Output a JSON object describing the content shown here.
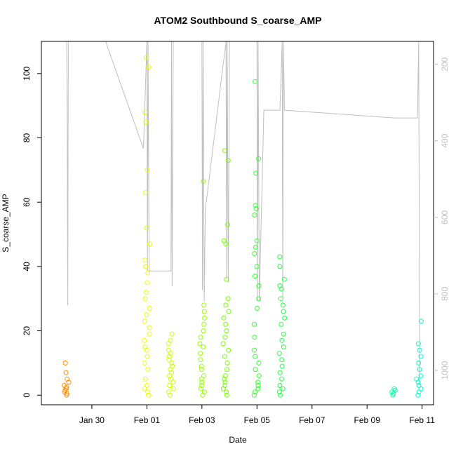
{
  "chart_data": {
    "type": "scatter",
    "title": "ATOM2 Southbound S_coarse_AMP",
    "xlabel": "Date",
    "ylabel": "S_coarse_AMP",
    "x_unit": "date",
    "xlim": [
      "2025-01-28T04:00",
      "2025-02-11T10:00"
    ],
    "ylim": [
      -3,
      110
    ],
    "y_ticks": [
      0,
      20,
      40,
      60,
      80,
      100
    ],
    "x_tick_labels": [
      "Jan 30",
      "Feb 01",
      "Feb 03",
      "Feb 05",
      "Feb 07",
      "Feb 09",
      "Feb 11"
    ],
    "x_tick_dates": [
      "2025-01-30",
      "2025-02-01",
      "2025-02-03",
      "2025-02-05",
      "2025-02-07",
      "2025-02-09",
      "2025-02-11"
    ],
    "right_axis": {
      "ticks": [
        200,
        400,
        600,
        800,
        1000
      ],
      "lim": [
        1090,
        140
      ],
      "reversed": true,
      "color": "#bfbfbf"
    },
    "grid": false,
    "legend": "none",
    "marker": "open-circle",
    "clusters": [
      {
        "date": "2025-01-29T02:00",
        "color": "#ff8c00",
        "values": [
          0,
          0.5,
          1,
          1.5,
          2,
          2.5,
          3,
          4,
          5,
          7,
          10
        ]
      },
      {
        "date": "2025-02-01T00:00",
        "color": "#e8ff00",
        "values": [
          0,
          1,
          2,
          3,
          5,
          8,
          10,
          12,
          14,
          15,
          17,
          19,
          21,
          23,
          25,
          27,
          30,
          32,
          35,
          38,
          40,
          42,
          47,
          52,
          63,
          70,
          85,
          88,
          102,
          105
        ]
      },
      {
        "date": "2025-02-01T21:00",
        "color": "#ccff00",
        "values": [
          0,
          1,
          2,
          3,
          4,
          5,
          6,
          7,
          8,
          9,
          10,
          11,
          12,
          13,
          14,
          16,
          17,
          19
        ]
      },
      {
        "date": "2025-02-03T00:00",
        "color": "#99ff00",
        "values": [
          0,
          1,
          2,
          3,
          4,
          5,
          6,
          8,
          9,
          11,
          13,
          15,
          16,
          18,
          20,
          22,
          24,
          26,
          28,
          66.5
        ]
      },
      {
        "date": "2025-02-03T21:00",
        "color": "#77ff00",
        "values": [
          0,
          1,
          2,
          3,
          4,
          5,
          6,
          8,
          10,
          12,
          14,
          16,
          18,
          20,
          22,
          24,
          26,
          28,
          30,
          36,
          47,
          48,
          53,
          73,
          76
        ]
      },
      {
        "date": "2025-02-05T00:00",
        "color": "#33ff33",
        "values": [
          0,
          1,
          2,
          3,
          4,
          6,
          8,
          10,
          12,
          14,
          18,
          22,
          27,
          30,
          34,
          37,
          40,
          44,
          46,
          48,
          56,
          58,
          59,
          69,
          73.5,
          97.5
        ]
      },
      {
        "date": "2025-02-05T22:00",
        "color": "#22ff44",
        "values": [
          0,
          1,
          2,
          3,
          5,
          7,
          9,
          11,
          13,
          15,
          17,
          19,
          22,
          24,
          26,
          28,
          30,
          33,
          34,
          36,
          40,
          43
        ]
      },
      {
        "date": "2025-02-10T00:00",
        "color": "#00ffaa",
        "values": [
          0,
          0.5,
          1,
          1.5,
          2
        ]
      },
      {
        "date": "2025-02-10T21:00",
        "color": "#00ffcc",
        "values": [
          0,
          1,
          2,
          3,
          4,
          5,
          6,
          8,
          10,
          12,
          14,
          16,
          23
        ]
      }
    ],
    "overlay_series": {
      "axis": "right",
      "color": "#bfbfbf",
      "points": [
        [
          "2025-01-29T02:00",
          100
        ],
        [
          "2025-01-29T02:30",
          300
        ],
        [
          "2025-01-29T03:00",
          830
        ],
        [
          "2025-01-29T03:30",
          140
        ],
        [
          "2025-01-30T12:00",
          140
        ],
        [
          "2025-01-31T21:00",
          420
        ],
        [
          "2025-02-01T00:00",
          140
        ],
        [
          "2025-02-01T00:30",
          740
        ],
        [
          "2025-02-01T01:00",
          140
        ],
        [
          "2025-02-01T02:00",
          740
        ],
        [
          "2025-02-01T21:00",
          740
        ],
        [
          "2025-02-01T21:30",
          140
        ],
        [
          "2025-02-01T22:00",
          780
        ],
        [
          "2025-02-01T23:00",
          140
        ],
        [
          "2025-02-03T00:00",
          140
        ],
        [
          "2025-02-03T00:30",
          790
        ],
        [
          "2025-02-03T01:00",
          140
        ],
        [
          "2025-02-03T02:00",
          820
        ],
        [
          "2025-02-03T03:00",
          580
        ],
        [
          "2025-02-03T21:00",
          140
        ],
        [
          "2025-02-03T21:30",
          760
        ],
        [
          "2025-02-03T22:00",
          140
        ],
        [
          "2025-02-03T23:00",
          770
        ],
        [
          "2025-02-04T00:00",
          140
        ],
        [
          "2025-02-05T00:00",
          140
        ],
        [
          "2025-02-05T00:30",
          820
        ],
        [
          "2025-02-05T01:00",
          140
        ],
        [
          "2025-02-05T02:00",
          820
        ],
        [
          "2025-02-05T06:00",
          320
        ],
        [
          "2025-02-05T20:00",
          320
        ],
        [
          "2025-02-05T22:00",
          140
        ],
        [
          "2025-02-05T22:30",
          810
        ],
        [
          "2025-02-05T23:00",
          140
        ],
        [
          "2025-02-06T00:00",
          320
        ],
        [
          "2025-02-10T00:00",
          340
        ],
        [
          "2025-02-10T01:00",
          340
        ],
        [
          "2025-02-10T20:00",
          340
        ],
        [
          "2025-02-10T21:00",
          140
        ],
        [
          "2025-02-10T22:00",
          1040
        ]
      ]
    }
  }
}
